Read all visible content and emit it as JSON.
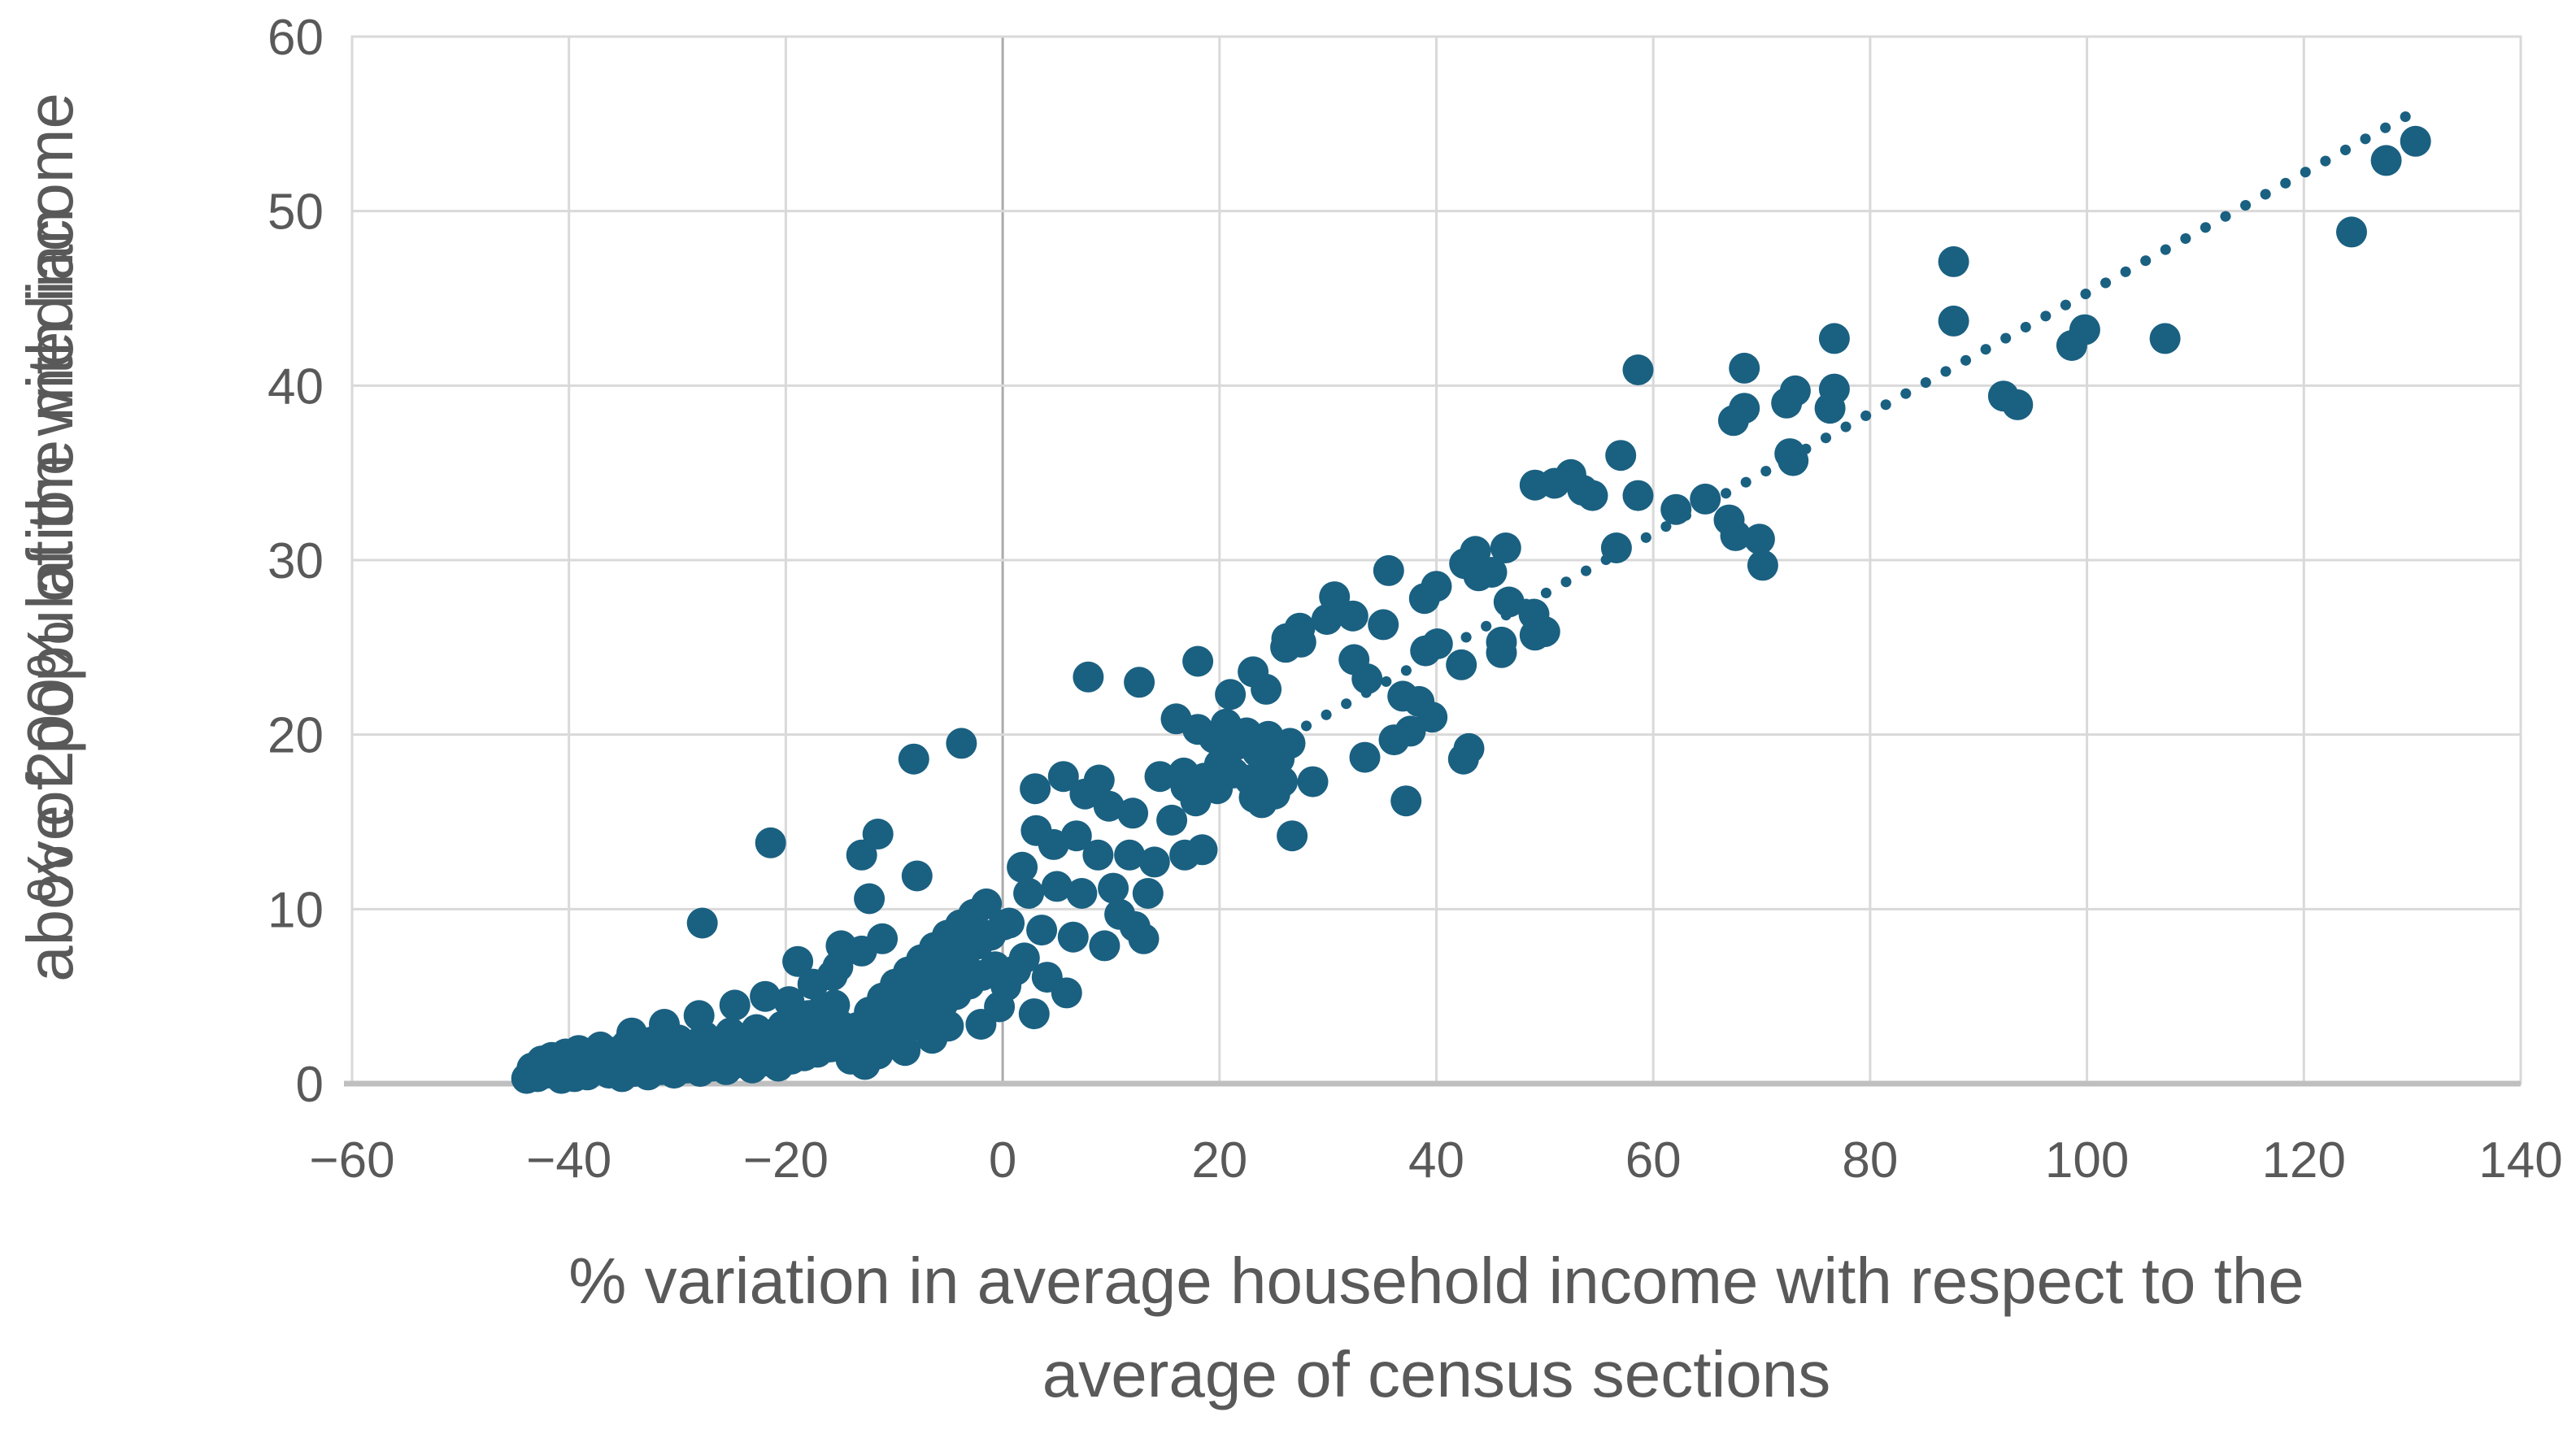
{
  "chart_data": {
    "type": "scatter",
    "title": "",
    "xlabel_lines": [
      "% variation in average household income with respect to the",
      "average of census sections"
    ],
    "ylabel_lines": [
      "% of population with income",
      "above 200% of the median"
    ],
    "xlim": [
      -60,
      140
    ],
    "ylim": [
      0,
      60
    ],
    "x_ticks": [
      -60,
      -40,
      -20,
      0,
      20,
      40,
      60,
      80,
      100,
      120,
      140
    ],
    "y_ticks": [
      0,
      10,
      20,
      30,
      40,
      50,
      60
    ],
    "grid": true,
    "legend": "none",
    "point_color": "#1A6081",
    "gridline_color": "#D9D9D9",
    "zero_line_color": "#ABABAB",
    "axis_line_color": "#BFBFBF",
    "text_color": "#595959",
    "trendline": {
      "style": "dotted",
      "x1": 28.0,
      "y1": 20.5,
      "x2": 130.5,
      "y2": 55.8
    },
    "points": [
      [
        -43.9,
        0.3
      ],
      [
        -43.4,
        0.9
      ],
      [
        -42.9,
        0.4
      ],
      [
        -42.5,
        1.3
      ],
      [
        -42.0,
        0.6
      ],
      [
        -41.6,
        1.5
      ],
      [
        -41.1,
        0.8
      ],
      [
        -40.7,
        0.3
      ],
      [
        -40.3,
        1.7
      ],
      [
        -39.9,
        1.0
      ],
      [
        -39.5,
        0.4
      ],
      [
        -39.1,
        1.9
      ],
      [
        -38.7,
        1.1
      ],
      [
        -38.3,
        0.5
      ],
      [
        -37.9,
        1.6
      ],
      [
        -37.5,
        0.9
      ],
      [
        -37.1,
        2.1
      ],
      [
        -36.7,
        1.3
      ],
      [
        -36.3,
        0.6
      ],
      [
        -35.9,
        1.8
      ],
      [
        -35.5,
        1.0
      ],
      [
        -35.1,
        0.4
      ],
      [
        -34.7,
        2.2
      ],
      [
        -34.3,
        1.4
      ],
      [
        -33.9,
        0.7
      ],
      [
        -33.5,
        2.0
      ],
      [
        -33.1,
        1.2
      ],
      [
        -32.7,
        0.5
      ],
      [
        -32.3,
        2.4
      ],
      [
        -31.9,
        1.6
      ],
      [
        -31.5,
        0.8
      ],
      [
        -31.1,
        2.1
      ],
      [
        -30.7,
        1.3
      ],
      [
        -30.3,
        0.6
      ],
      [
        -29.9,
        2.5
      ],
      [
        -29.5,
        1.7
      ],
      [
        -29.1,
        0.9
      ],
      [
        -28.7,
        2.2
      ],
      [
        -28.3,
        1.4
      ],
      [
        -27.9,
        0.7
      ],
      [
        -27.5,
        2.7
      ],
      [
        -27.1,
        1.8
      ],
      [
        -26.7,
        1.0
      ],
      [
        -26.3,
        2.4
      ],
      [
        -25.9,
        1.5
      ],
      [
        -25.5,
        0.8
      ],
      [
        -25.1,
        2.9
      ],
      [
        -24.7,
        2.0
      ],
      [
        -24.3,
        1.2
      ],
      [
        -23.9,
        2.6
      ],
      [
        -23.5,
        1.7
      ],
      [
        -23.1,
        0.9
      ],
      [
        -22.7,
        3.1
      ],
      [
        -22.3,
        2.1
      ],
      [
        -21.9,
        1.3
      ],
      [
        -21.5,
        2.8
      ],
      [
        -21.1,
        1.8
      ],
      [
        -20.7,
        1.0
      ],
      [
        -20.3,
        3.3
      ],
      [
        -19.9,
        2.3
      ],
      [
        -19.5,
        1.4
      ],
      [
        -19.1,
        3.6
      ],
      [
        -18.7,
        2.5
      ],
      [
        -18.3,
        1.6
      ],
      [
        -17.9,
        3.9
      ],
      [
        -17.5,
        2.8
      ],
      [
        -17.1,
        1.8
      ],
      [
        -16.7,
        4.2
      ],
      [
        -16.3,
        3.1
      ],
      [
        -15.9,
        2.1
      ],
      [
        -15.5,
        4.5
      ],
      [
        -15.1,
        3.4
      ],
      [
        -34.2,
        2.9
      ],
      [
        -31.2,
        3.4
      ],
      [
        -28.0,
        3.9
      ],
      [
        -24.7,
        4.5
      ],
      [
        -21.9,
        5.0
      ],
      [
        -19.7,
        4.7
      ],
      [
        -18.9,
        7.0
      ],
      [
        -17.5,
        5.7
      ],
      [
        -15.7,
        6.2
      ],
      [
        -15.2,
        6.7
      ],
      [
        -14.9,
        7.9
      ],
      [
        -13.0,
        7.6
      ],
      [
        -11.1,
        8.3
      ],
      [
        -27.7,
        9.2
      ],
      [
        -21.4,
        13.8
      ],
      [
        -13.0,
        13.1
      ],
      [
        -11.5,
        14.3
      ],
      [
        -12.3,
        10.6
      ],
      [
        -7.9,
        11.9
      ],
      [
        -8.2,
        18.6
      ],
      [
        -3.8,
        19.5
      ],
      [
        -14.4,
        2.3
      ],
      [
        -14.0,
        1.4
      ],
      [
        -13.5,
        3.2
      ],
      [
        -13.1,
        2.1
      ],
      [
        -12.7,
        1.1
      ],
      [
        -12.3,
        4.1
      ],
      [
        -11.9,
        2.9
      ],
      [
        -11.5,
        1.7
      ],
      [
        -11.1,
        4.9
      ],
      [
        -10.7,
        3.6
      ],
      [
        -10.3,
        2.3
      ],
      [
        -9.9,
        5.7
      ],
      [
        -9.5,
        4.3
      ],
      [
        -9.1,
        3.0
      ],
      [
        -8.7,
        6.4
      ],
      [
        -8.3,
        5.0
      ],
      [
        -7.9,
        3.6
      ],
      [
        -7.5,
        7.1
      ],
      [
        -7.1,
        5.6
      ],
      [
        -6.7,
        4.1
      ],
      [
        -6.3,
        7.8
      ],
      [
        -5.9,
        6.2
      ],
      [
        -5.5,
        4.6
      ],
      [
        -5.1,
        8.5
      ],
      [
        -4.7,
        6.8
      ],
      [
        -4.3,
        5.1
      ],
      [
        -3.9,
        9.1
      ],
      [
        -3.5,
        7.4
      ],
      [
        -3.1,
        5.7
      ],
      [
        -2.7,
        9.7
      ],
      [
        -2.3,
        8.0
      ],
      [
        -1.9,
        6.2
      ],
      [
        -1.5,
        10.3
      ],
      [
        -1.1,
        8.5
      ],
      [
        -0.7,
        6.7
      ],
      [
        -0.3,
        4.4
      ],
      [
        0.1,
        9.1
      ],
      [
        -2.0,
        3.4
      ],
      [
        -5.0,
        3.3
      ],
      [
        -9.0,
        1.9
      ],
      [
        -6.5,
        2.6
      ],
      [
        0.6,
        9.2
      ],
      [
        1.2,
        6.5
      ],
      [
        1.8,
        12.4
      ],
      [
        2.4,
        10.9
      ],
      [
        2.9,
        4.0
      ],
      [
        3.0,
        16.9
      ],
      [
        3.1,
        14.5
      ],
      [
        3.6,
        8.8
      ],
      [
        4.1,
        6.1
      ],
      [
        4.7,
        13.7
      ],
      [
        5.0,
        11.3
      ],
      [
        5.6,
        17.6
      ],
      [
        5.9,
        5.2
      ],
      [
        6.5,
        8.4
      ],
      [
        6.8,
        14.2
      ],
      [
        7.3,
        10.9
      ],
      [
        7.6,
        16.6
      ],
      [
        7.9,
        23.3
      ],
      [
        8.8,
        13.1
      ],
      [
        8.9,
        17.4
      ],
      [
        9.4,
        7.9
      ],
      [
        9.8,
        15.9
      ],
      [
        10.2,
        11.2
      ],
      [
        10.8,
        9.7
      ],
      [
        11.7,
        13.1
      ],
      [
        12.0,
        15.5
      ],
      [
        12.2,
        9.0
      ],
      [
        12.6,
        23.0
      ],
      [
        13.0,
        8.3
      ],
      [
        13.4,
        10.9
      ],
      [
        14.0,
        12.7
      ],
      [
        14.5,
        17.6
      ],
      [
        15.6,
        15.1
      ],
      [
        16.0,
        20.9
      ],
      [
        16.7,
        17.8
      ],
      [
        16.8,
        13.1
      ],
      [
        16.9,
        17.0
      ],
      [
        18.4,
        17.3
      ],
      [
        18.4,
        13.4
      ],
      [
        2.0,
        7.2
      ],
      [
        0.3,
        5.6
      ],
      [
        18.0,
        20.3
      ],
      [
        19.5,
        19.8
      ],
      [
        20.6,
        20.6
      ],
      [
        21.5,
        19.4
      ],
      [
        22.5,
        20.1
      ],
      [
        23.5,
        19.0
      ],
      [
        24.5,
        19.9
      ],
      [
        25.5,
        18.6
      ],
      [
        26.5,
        19.5
      ],
      [
        20.0,
        18.3
      ],
      [
        21.3,
        17.8
      ],
      [
        22.8,
        17.4
      ],
      [
        24.2,
        18.0
      ],
      [
        18.6,
        17.5
      ],
      [
        19.8,
        16.9
      ],
      [
        25.8,
        17.3
      ],
      [
        17.8,
        16.2
      ],
      [
        23.2,
        16.4
      ],
      [
        26.7,
        14.2
      ],
      [
        18.0,
        24.2
      ],
      [
        23.1,
        23.6
      ],
      [
        26.1,
        25.0
      ],
      [
        27.5,
        25.3
      ],
      [
        32.4,
        24.3
      ],
      [
        33.6,
        23.2
      ],
      [
        39.0,
        24.8
      ],
      [
        40.1,
        25.2
      ],
      [
        36.9,
        22.2
      ],
      [
        38.4,
        21.9
      ],
      [
        39.6,
        21.0
      ],
      [
        36.1,
        19.7
      ],
      [
        37.6,
        20.2
      ],
      [
        33.4,
        18.7
      ],
      [
        28.6,
        17.3
      ],
      [
        25.1,
        16.6
      ],
      [
        23.9,
        16.1
      ],
      [
        42.3,
        24.0
      ],
      [
        42.5,
        18.6
      ],
      [
        37.2,
        16.2
      ],
      [
        43.0,
        19.2
      ],
      [
        21.0,
        22.3
      ],
      [
        24.3,
        22.6
      ],
      [
        35.6,
        29.4
      ],
      [
        30.6,
        27.9
      ],
      [
        32.3,
        26.8
      ],
      [
        29.9,
        26.6
      ],
      [
        27.4,
        26.1
      ],
      [
        26.2,
        25.5
      ],
      [
        35.1,
        26.3
      ],
      [
        38.9,
        27.8
      ],
      [
        40.0,
        28.5
      ],
      [
        43.6,
        30.5
      ],
      [
        46.4,
        30.7
      ],
      [
        43.9,
        29.1
      ],
      [
        45.1,
        29.3
      ],
      [
        42.6,
        29.8
      ],
      [
        46.7,
        27.6
      ],
      [
        49.0,
        26.9
      ],
      [
        50.0,
        25.9
      ],
      [
        46.0,
        25.3
      ],
      [
        49.1,
        25.7
      ],
      [
        46.0,
        24.7
      ],
      [
        49.1,
        34.3
      ],
      [
        50.9,
        34.4
      ],
      [
        52.4,
        34.9
      ],
      [
        53.5,
        34.0
      ],
      [
        54.4,
        33.7
      ],
      [
        57.0,
        36.0
      ],
      [
        58.6,
        33.7
      ],
      [
        56.6,
        30.7
      ],
      [
        58.6,
        40.9
      ],
      [
        62.1,
        32.9
      ],
      [
        67.0,
        32.3
      ],
      [
        67.6,
        31.4
      ],
      [
        70.1,
        29.7
      ],
      [
        68.4,
        41.0
      ],
      [
        68.4,
        38.7
      ],
      [
        73.1,
        39.7
      ],
      [
        76.7,
        39.8
      ],
      [
        76.7,
        42.7
      ],
      [
        72.9,
        35.7
      ],
      [
        72.6,
        36.1
      ],
      [
        67.4,
        38.0
      ],
      [
        72.3,
        39.0
      ],
      [
        76.3,
        38.7
      ],
      [
        69.8,
        31.2
      ],
      [
        64.8,
        33.5
      ],
      [
        87.7,
        47.1
      ],
      [
        87.7,
        43.7
      ],
      [
        92.3,
        39.4
      ],
      [
        93.6,
        38.9
      ],
      [
        98.6,
        42.3
      ],
      [
        99.8,
        43.2
      ],
      [
        107.2,
        42.7
      ],
      [
        124.4,
        48.8
      ],
      [
        127.6,
        52.9
      ],
      [
        130.3,
        54.0
      ]
    ]
  }
}
